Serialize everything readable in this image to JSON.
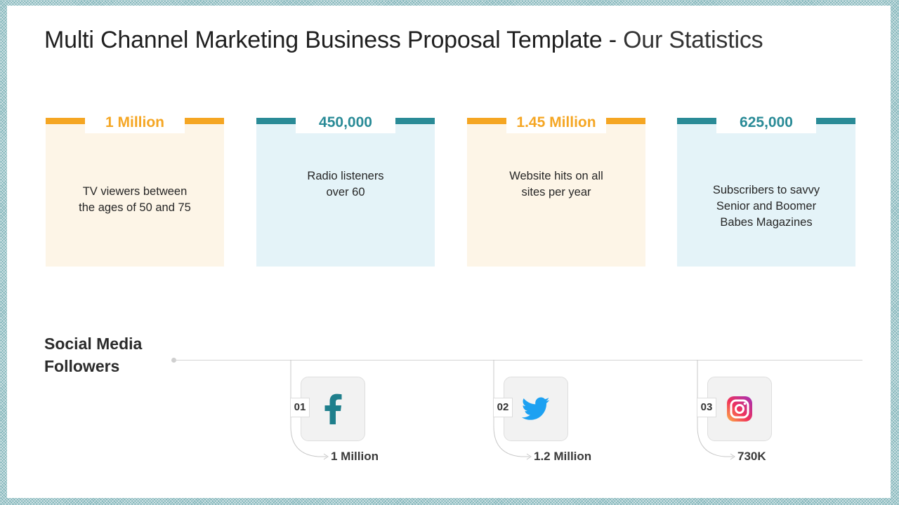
{
  "slide": {
    "title_main": "Multi Channel Marketing Business Proposal Template - ",
    "title_sub": "Our Statistics"
  },
  "stats": [
    {
      "value": "1 Million",
      "description": "TV viewers between\nthe ages of 50 and 75",
      "theme": "orange"
    },
    {
      "value": "450,000",
      "description": "Radio listeners\nover 60",
      "theme": "teal"
    },
    {
      "value": "1.45 Million",
      "description": "Website hits on all\nsites per year",
      "theme": "orange"
    },
    {
      "value": "625,000",
      "description": "Subscribers to savvy\nSenior and Boomer\nBabes Magazines",
      "theme": "teal"
    }
  ],
  "social": {
    "heading": "Social Media\nFollowers",
    "items": [
      {
        "number": "01",
        "icon": "facebook-icon",
        "followers": "1 Million"
      },
      {
        "number": "02",
        "icon": "twitter-icon",
        "followers": "1.2 Million"
      },
      {
        "number": "03",
        "icon": "instagram-icon",
        "followers": "730K"
      }
    ]
  },
  "colors": {
    "orange": "#f5a623",
    "teal": "#2a8b97",
    "orange_bg": "#fdf5e7",
    "teal_bg": "#e4f3f8",
    "facebook": "#1f7f8c",
    "twitter": "#1da1f2"
  }
}
